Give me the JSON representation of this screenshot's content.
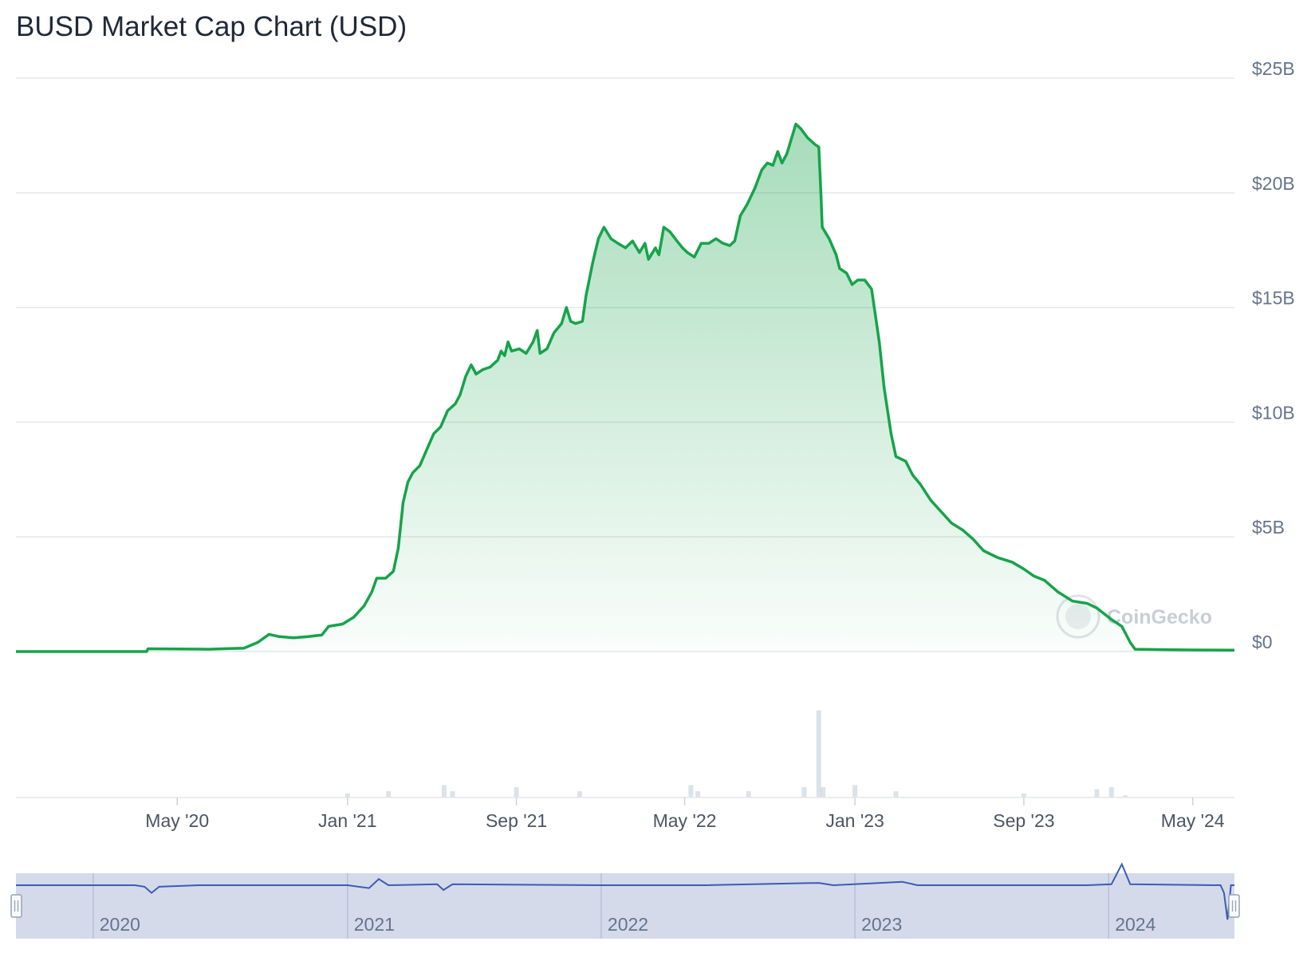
{
  "title": "BUSD Market Cap Chart (USD)",
  "watermark": "CoinGecko",
  "colors": {
    "line": "#16a34a",
    "area_top": "#16a34a",
    "grid": "#e5e7eb",
    "volume": "#cbd5e1",
    "navigator_bg": "#d5daeb",
    "navigator_line": "#3b5bb5"
  },
  "chart_data": {
    "type": "area",
    "title": "BUSD Market Cap Chart (USD)",
    "xlabel": "",
    "ylabel": "",
    "y_unit": "USD (billions)",
    "ylim": [
      0,
      25
    ],
    "xlim": [
      "2019-09-12",
      "2024-06-30"
    ],
    "grid": true,
    "legend": "none",
    "y_ticks": [
      "$0",
      "$5B",
      "$10B",
      "$15B",
      "$20B",
      "$25B"
    ],
    "y_tick_values": [
      0,
      5,
      10,
      15,
      20,
      25
    ],
    "x_ticks": [
      {
        "date": "2020-05-01",
        "label": "May '20"
      },
      {
        "date": "2021-01-01",
        "label": "Jan '21"
      },
      {
        "date": "2021-09-01",
        "label": "Sep '21"
      },
      {
        "date": "2022-05-01",
        "label": "May '22"
      },
      {
        "date": "2023-01-01",
        "label": "Jan '23"
      },
      {
        "date": "2023-09-01",
        "label": "Sep '23"
      },
      {
        "date": "2024-05-01",
        "label": "May '24"
      }
    ],
    "navigator_ticks": [
      {
        "date": "2020-01-01",
        "label": "2020"
      },
      {
        "date": "2021-01-01",
        "label": "2021"
      },
      {
        "date": "2022-01-01",
        "label": "2022"
      },
      {
        "date": "2023-01-01",
        "label": "2023"
      },
      {
        "date": "2024-01-01",
        "label": "2024"
      }
    ],
    "series": [
      {
        "values": [
          [
            "2019-09-12",
            0.0
          ],
          [
            "2020-03-18",
            0.0
          ],
          [
            "2020-03-20",
            0.12
          ],
          [
            "2020-05-01",
            0.11
          ],
          [
            "2020-06-15",
            0.1
          ],
          [
            "2020-07-15",
            0.13
          ],
          [
            "2020-08-05",
            0.15
          ],
          [
            "2020-08-25",
            0.4
          ],
          [
            "2020-09-10",
            0.75
          ],
          [
            "2020-09-25",
            0.65
          ],
          [
            "2020-10-15",
            0.6
          ],
          [
            "2020-11-05",
            0.65
          ],
          [
            "2020-11-25",
            0.72
          ],
          [
            "2020-12-05",
            1.1
          ],
          [
            "2020-12-25",
            1.2
          ],
          [
            "2021-01-10",
            1.5
          ],
          [
            "2021-01-25",
            2.0
          ],
          [
            "2021-02-05",
            2.6
          ],
          [
            "2021-02-12",
            3.2
          ],
          [
            "2021-02-25",
            3.2
          ],
          [
            "2021-03-08",
            3.5
          ],
          [
            "2021-03-15",
            4.5
          ],
          [
            "2021-03-22",
            6.5
          ],
          [
            "2021-03-29",
            7.4
          ],
          [
            "2021-04-05",
            7.8
          ],
          [
            "2021-04-15",
            8.1
          ],
          [
            "2021-04-25",
            8.8
          ],
          [
            "2021-05-05",
            9.5
          ],
          [
            "2021-05-15",
            9.8
          ],
          [
            "2021-05-25",
            10.5
          ],
          [
            "2021-06-05",
            10.8
          ],
          [
            "2021-06-12",
            11.2
          ],
          [
            "2021-06-20",
            12.0
          ],
          [
            "2021-06-28",
            12.5
          ],
          [
            "2021-07-05",
            12.1
          ],
          [
            "2021-07-15",
            12.3
          ],
          [
            "2021-07-25",
            12.4
          ],
          [
            "2021-08-05",
            12.7
          ],
          [
            "2021-08-10",
            13.1
          ],
          [
            "2021-08-15",
            12.9
          ],
          [
            "2021-08-20",
            13.5
          ],
          [
            "2021-08-25",
            13.1
          ],
          [
            "2021-09-05",
            13.2
          ],
          [
            "2021-09-15",
            13.0
          ],
          [
            "2021-09-25",
            13.5
          ],
          [
            "2021-10-01",
            14.0
          ],
          [
            "2021-10-05",
            13.0
          ],
          [
            "2021-10-15",
            13.2
          ],
          [
            "2021-10-25",
            13.9
          ],
          [
            "2021-11-05",
            14.3
          ],
          [
            "2021-11-12",
            15.0
          ],
          [
            "2021-11-18",
            14.4
          ],
          [
            "2021-11-25",
            14.3
          ],
          [
            "2021-12-05",
            14.4
          ],
          [
            "2021-12-10",
            15.5
          ],
          [
            "2021-12-20",
            17.0
          ],
          [
            "2021-12-28",
            18.0
          ],
          [
            "2022-01-05",
            18.5
          ],
          [
            "2022-01-15",
            18.0
          ],
          [
            "2022-01-25",
            17.8
          ],
          [
            "2022-02-05",
            17.6
          ],
          [
            "2022-02-15",
            17.9
          ],
          [
            "2022-02-25",
            17.4
          ],
          [
            "2022-03-05",
            17.8
          ],
          [
            "2022-03-10",
            17.1
          ],
          [
            "2022-03-20",
            17.6
          ],
          [
            "2022-03-25",
            17.3
          ],
          [
            "2022-04-01",
            18.5
          ],
          [
            "2022-04-10",
            18.3
          ],
          [
            "2022-04-20",
            17.9
          ],
          [
            "2022-04-28",
            17.6
          ],
          [
            "2022-05-05",
            17.4
          ],
          [
            "2022-05-15",
            17.2
          ],
          [
            "2022-05-25",
            17.8
          ],
          [
            "2022-06-05",
            17.8
          ],
          [
            "2022-06-15",
            18.0
          ],
          [
            "2022-06-25",
            17.8
          ],
          [
            "2022-07-05",
            17.7
          ],
          [
            "2022-07-12",
            17.9
          ],
          [
            "2022-07-20",
            19.0
          ],
          [
            "2022-07-30",
            19.5
          ],
          [
            "2022-08-10",
            20.2
          ],
          [
            "2022-08-20",
            21.0
          ],
          [
            "2022-08-28",
            21.3
          ],
          [
            "2022-09-05",
            21.2
          ],
          [
            "2022-09-12",
            21.8
          ],
          [
            "2022-09-18",
            21.3
          ],
          [
            "2022-09-25",
            21.7
          ],
          [
            "2022-10-02",
            22.4
          ],
          [
            "2022-10-08",
            23.0
          ],
          [
            "2022-10-15",
            22.8
          ],
          [
            "2022-10-25",
            22.4
          ],
          [
            "2022-11-05",
            22.1
          ],
          [
            "2022-11-10",
            22.0
          ],
          [
            "2022-11-13",
            20.0
          ],
          [
            "2022-11-15",
            18.5
          ],
          [
            "2022-11-25",
            18.0
          ],
          [
            "2022-12-05",
            17.3
          ],
          [
            "2022-12-10",
            16.7
          ],
          [
            "2022-12-20",
            16.5
          ],
          [
            "2022-12-28",
            16.0
          ],
          [
            "2023-01-05",
            16.2
          ],
          [
            "2023-01-15",
            16.2
          ],
          [
            "2023-01-25",
            15.8
          ],
          [
            "2023-02-05",
            13.5
          ],
          [
            "2023-02-12",
            11.5
          ],
          [
            "2023-02-22",
            9.5
          ],
          [
            "2023-03-01",
            8.5
          ],
          [
            "2023-03-15",
            8.3
          ],
          [
            "2023-03-25",
            7.7
          ],
          [
            "2023-04-05",
            7.3
          ],
          [
            "2023-04-20",
            6.6
          ],
          [
            "2023-05-05",
            6.1
          ],
          [
            "2023-05-20",
            5.6
          ],
          [
            "2023-06-05",
            5.3
          ],
          [
            "2023-06-20",
            4.9
          ],
          [
            "2023-07-05",
            4.4
          ],
          [
            "2023-07-25",
            4.1
          ],
          [
            "2023-08-15",
            3.9
          ],
          [
            "2023-09-01",
            3.6
          ],
          [
            "2023-09-15",
            3.3
          ],
          [
            "2023-10-01",
            3.1
          ],
          [
            "2023-10-20",
            2.6
          ],
          [
            "2023-11-10",
            2.2
          ],
          [
            "2023-12-01",
            2.1
          ],
          [
            "2023-12-15",
            1.9
          ],
          [
            "2024-01-05",
            1.4
          ],
          [
            "2024-01-20",
            1.1
          ],
          [
            "2024-02-01",
            0.4
          ],
          [
            "2024-02-08",
            0.1
          ],
          [
            "2024-03-01",
            0.09
          ],
          [
            "2024-04-01",
            0.08
          ],
          [
            "2024-05-01",
            0.07
          ],
          [
            "2024-06-30",
            0.06
          ]
        ]
      }
    ],
    "volume": [
      [
        "2021-01-01",
        0.2
      ],
      [
        "2021-03-01",
        0.3
      ],
      [
        "2021-05-20",
        0.6
      ],
      [
        "2021-06-01",
        0.3
      ],
      [
        "2021-09-01",
        0.5
      ],
      [
        "2021-12-01",
        0.3
      ],
      [
        "2022-05-10",
        0.6
      ],
      [
        "2022-05-20",
        0.3
      ],
      [
        "2022-08-01",
        0.3
      ],
      [
        "2022-10-20",
        0.5
      ],
      [
        "2022-11-10",
        4.2
      ],
      [
        "2022-11-16",
        0.5
      ],
      [
        "2023-01-01",
        0.6
      ],
      [
        "2023-03-01",
        0.3
      ],
      [
        "2023-09-01",
        0.2
      ],
      [
        "2023-12-15",
        0.4
      ],
      [
        "2024-01-05",
        0.5
      ],
      [
        "2024-01-25",
        0.1
      ]
    ],
    "navigator": [
      [
        "2019-09-12",
        0.5
      ],
      [
        "2020-03-01",
        0.5
      ],
      [
        "2020-03-15",
        0.42
      ],
      [
        "2020-03-25",
        0.1
      ],
      [
        "2020-04-05",
        0.42
      ],
      [
        "2020-06-01",
        0.5
      ],
      [
        "2021-01-01",
        0.5
      ],
      [
        "2021-02-01",
        0.35
      ],
      [
        "2021-02-15",
        0.82
      ],
      [
        "2021-03-01",
        0.5
      ],
      [
        "2021-05-10",
        0.55
      ],
      [
        "2021-05-19",
        0.25
      ],
      [
        "2021-06-01",
        0.55
      ],
      [
        "2022-01-01",
        0.5
      ],
      [
        "2022-06-01",
        0.5
      ],
      [
        "2022-11-10",
        0.62
      ],
      [
        "2022-12-01",
        0.5
      ],
      [
        "2023-03-10",
        0.68
      ],
      [
        "2023-04-01",
        0.5
      ],
      [
        "2023-12-01",
        0.5
      ],
      [
        "2024-01-05",
        0.55
      ],
      [
        "2024-01-20",
        1.6
      ],
      [
        "2024-02-01",
        0.55
      ],
      [
        "2024-06-10",
        0.5
      ],
      [
        "2024-06-15",
        0.1
      ],
      [
        "2024-06-20",
        -1.3
      ],
      [
        "2024-06-25",
        0.5
      ],
      [
        "2024-06-30",
        0.5
      ]
    ]
  }
}
